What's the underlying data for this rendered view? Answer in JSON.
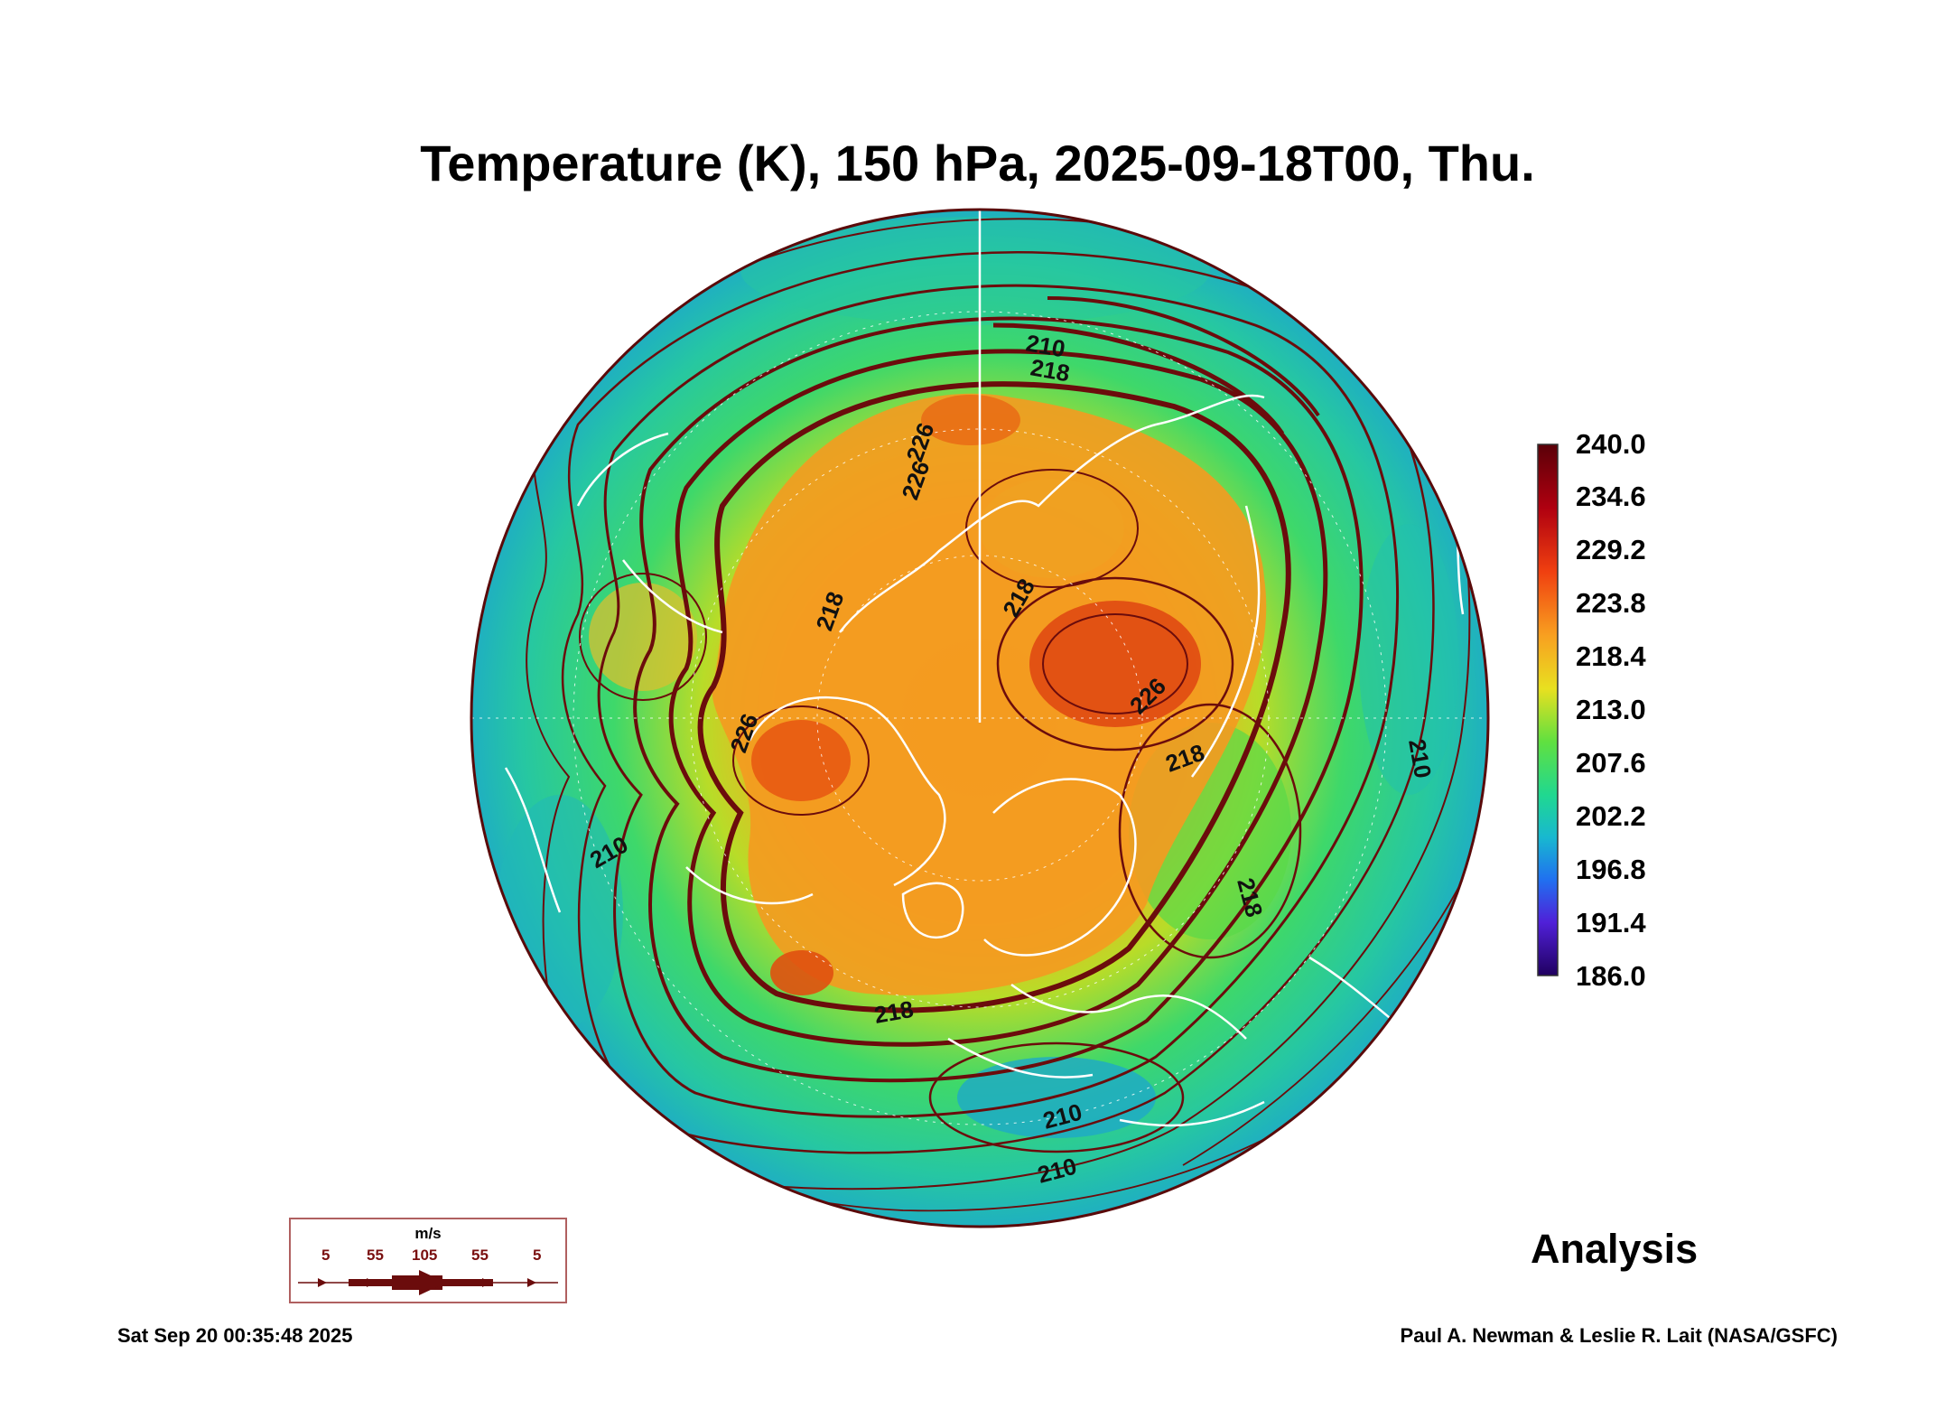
{
  "title": "Temperature (K), 150 hPa, 2025-09-18T00, Thu.",
  "colorbar": {
    "labels": [
      "240.0",
      "234.6",
      "229.2",
      "223.8",
      "218.4",
      "213.0",
      "207.6",
      "202.2",
      "196.8",
      "191.4",
      "186.0"
    ],
    "min": 186.0,
    "max": 240.0
  },
  "contour_labels": [
    "210",
    "218",
    "226",
    "226",
    "218",
    "226",
    "218",
    "226",
    "218",
    "210",
    "210",
    "218",
    "210",
    "210",
    "218"
  ],
  "legend": {
    "unit": "m/s",
    "speeds": [
      "5",
      "55",
      "105",
      "55",
      "5"
    ]
  },
  "analysis_label": "Analysis",
  "timestamp": "Sat Sep 20 00:35:48 2025",
  "credit": "Paul A. Newman & Leslie R. Lait (NASA/GSFC)",
  "colors": {
    "streamline": "#6b0c0c",
    "coastline": "#ffffff",
    "cold": "#1aa0c0",
    "mid": "#30d070",
    "warm": "#f0a020",
    "hot": "#e05010"
  }
}
